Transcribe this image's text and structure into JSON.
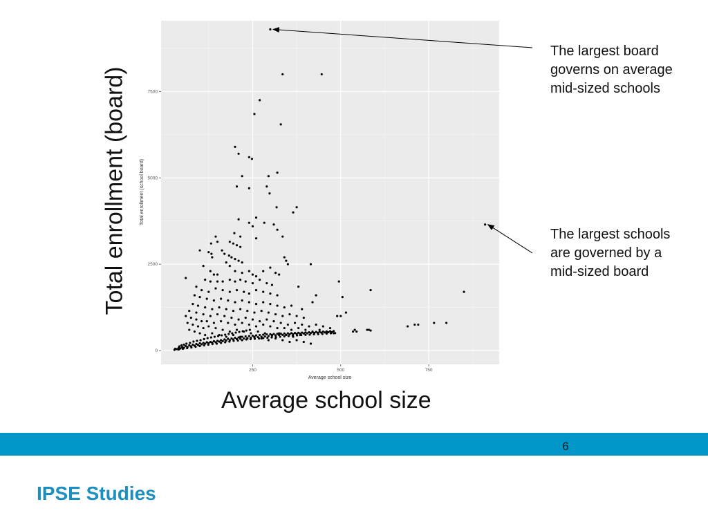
{
  "slide": {
    "xlabel": "Average school size",
    "ylabel": "Total enrollment (board)",
    "annotations": [
      "The largest board governs on average mid-sized schools",
      "The largest schools are governed by a mid-sized board"
    ],
    "page_number": "6",
    "brand": "IPSE Studies",
    "brand_color": "#1b8fc0",
    "band_color": "#0097c8"
  },
  "chart_data": {
    "type": "scatter",
    "title": "",
    "xlabel": "Average school size",
    "ylabel": "Total enrollment (school board)",
    "xlim": [
      -10,
      950
    ],
    "ylim": [
      -400,
      9550
    ],
    "x_ticks": [
      250,
      500,
      750
    ],
    "y_ticks": [
      0,
      2500,
      5000,
      7500
    ],
    "grid": true,
    "panel_color": "#ebebeb",
    "point_color": "#000000",
    "annotated_points": [
      [
        300,
        9300
      ],
      [
        910,
        3650
      ]
    ],
    "points": [
      [
        300,
        9300
      ],
      [
        335,
        8000
      ],
      [
        446,
        8000
      ],
      [
        270,
        7250
      ],
      [
        255,
        6850
      ],
      [
        330,
        6550
      ],
      [
        200,
        5900
      ],
      [
        210,
        5700
      ],
      [
        240,
        5600
      ],
      [
        248,
        5550
      ],
      [
        220,
        5050
      ],
      [
        295,
        5050
      ],
      [
        320,
        5150
      ],
      [
        205,
        4750
      ],
      [
        240,
        4700
      ],
      [
        290,
        4750
      ],
      [
        298,
        4550
      ],
      [
        318,
        4150
      ],
      [
        375,
        4150
      ],
      [
        365,
        4000
      ],
      [
        210,
        3800
      ],
      [
        260,
        3850
      ],
      [
        240,
        3700
      ],
      [
        250,
        3600
      ],
      [
        283,
        3700
      ],
      [
        310,
        3650
      ],
      [
        320,
        3500
      ],
      [
        198,
        3400
      ],
      [
        215,
        3300
      ],
      [
        260,
        3250
      ],
      [
        335,
        3300
      ],
      [
        145,
        3300
      ],
      [
        150,
        3150
      ],
      [
        132,
        3100
      ],
      [
        185,
        3150
      ],
      [
        195,
        3100
      ],
      [
        205,
        3050
      ],
      [
        215,
        3000
      ],
      [
        100,
        2900
      ],
      [
        125,
        2850
      ],
      [
        133,
        2800
      ],
      [
        163,
        2900
      ],
      [
        170,
        2800
      ],
      [
        183,
        2750
      ],
      [
        190,
        2700
      ],
      [
        200,
        2650
      ],
      [
        210,
        2600
      ],
      [
        220,
        2550
      ],
      [
        135,
        2700
      ],
      [
        175,
        2550
      ],
      [
        185,
        2450
      ],
      [
        340,
        2700
      ],
      [
        345,
        2600
      ],
      [
        350,
        2500
      ],
      [
        110,
        2450
      ],
      [
        415,
        2500
      ],
      [
        60,
        2100
      ],
      [
        130,
        2300
      ],
      [
        140,
        2200
      ],
      [
        150,
        2200
      ],
      [
        200,
        2300
      ],
      [
        220,
        2250
      ],
      [
        240,
        2300
      ],
      [
        250,
        2200
      ],
      [
        260,
        2150
      ],
      [
        280,
        2300
      ],
      [
        300,
        2400
      ],
      [
        315,
        2250
      ],
      [
        325,
        2200
      ],
      [
        115,
        2050
      ],
      [
        130,
        2000
      ],
      [
        150,
        2000
      ],
      [
        165,
        2000
      ],
      [
        185,
        2050
      ],
      [
        200,
        2000
      ],
      [
        215,
        2050
      ],
      [
        230,
        2000
      ],
      [
        250,
        1950
      ],
      [
        270,
        2050
      ],
      [
        290,
        1950
      ],
      [
        305,
        1900
      ],
      [
        380,
        1850
      ],
      [
        495,
        2000
      ],
      [
        90,
        1850
      ],
      [
        105,
        1750
      ],
      [
        125,
        1700
      ],
      [
        145,
        1800
      ],
      [
        165,
        1750
      ],
      [
        185,
        1700
      ],
      [
        205,
        1750
      ],
      [
        225,
        1700
      ],
      [
        240,
        1650
      ],
      [
        260,
        1750
      ],
      [
        280,
        1700
      ],
      [
        300,
        1650
      ],
      [
        320,
        1600
      ],
      [
        85,
        1600
      ],
      [
        100,
        1550
      ],
      [
        120,
        1500
      ],
      [
        140,
        1450
      ],
      [
        160,
        1500
      ],
      [
        180,
        1450
      ],
      [
        200,
        1400
      ],
      [
        220,
        1450
      ],
      [
        240,
        1400
      ],
      [
        260,
        1350
      ],
      [
        280,
        1400
      ],
      [
        300,
        1350
      ],
      [
        320,
        1300
      ],
      [
        340,
        1250
      ],
      [
        360,
        1300
      ],
      [
        390,
        1200
      ],
      [
        420,
        1400
      ],
      [
        430,
        1600
      ],
      [
        505,
        1550
      ],
      [
        585,
        1750
      ],
      [
        850,
        1700
      ],
      [
        80,
        1350
      ],
      [
        95,
        1300
      ],
      [
        115,
        1250
      ],
      [
        135,
        1200
      ],
      [
        155,
        1250
      ],
      [
        175,
        1200
      ],
      [
        195,
        1150
      ],
      [
        215,
        1200
      ],
      [
        235,
        1150
      ],
      [
        255,
        1100
      ],
      [
        275,
        1150
      ],
      [
        295,
        1100
      ],
      [
        315,
        1050
      ],
      [
        335,
        1000
      ],
      [
        355,
        1050
      ],
      [
        375,
        1000
      ],
      [
        395,
        950
      ],
      [
        70,
        1150
      ],
      [
        90,
        1100
      ],
      [
        110,
        1050
      ],
      [
        130,
        1000
      ],
      [
        150,
        1050
      ],
      [
        170,
        1000
      ],
      [
        190,
        950
      ],
      [
        210,
        900
      ],
      [
        230,
        950
      ],
      [
        250,
        900
      ],
      [
        270,
        850
      ],
      [
        290,
        900
      ],
      [
        310,
        850
      ],
      [
        330,
        800
      ],
      [
        350,
        750
      ],
      [
        370,
        800
      ],
      [
        390,
        750
      ],
      [
        410,
        700
      ],
      [
        430,
        750
      ],
      [
        450,
        700
      ],
      [
        470,
        650
      ],
      [
        515,
        1100
      ],
      [
        490,
        1000
      ],
      [
        500,
        1000
      ],
      [
        60,
        1000
      ],
      [
        75,
        950
      ],
      [
        90,
        900
      ],
      [
        105,
        850
      ],
      [
        120,
        850
      ],
      [
        140,
        800
      ],
      [
        160,
        850
      ],
      [
        180,
        800
      ],
      [
        200,
        750
      ],
      [
        220,
        800
      ],
      [
        240,
        750
      ],
      [
        260,
        700
      ],
      [
        280,
        750
      ],
      [
        300,
        700
      ],
      [
        320,
        650
      ],
      [
        340,
        650
      ],
      [
        360,
        600
      ],
      [
        380,
        650
      ],
      [
        400,
        600
      ],
      [
        420,
        550
      ],
      [
        440,
        600
      ],
      [
        460,
        550
      ],
      [
        480,
        500
      ],
      [
        65,
        800
      ],
      [
        80,
        750
      ],
      [
        95,
        700
      ],
      [
        110,
        650
      ],
      [
        125,
        700
      ],
      [
        145,
        650
      ],
      [
        165,
        600
      ],
      [
        185,
        550
      ],
      [
        205,
        600
      ],
      [
        225,
        550
      ],
      [
        245,
        500
      ],
      [
        265,
        550
      ],
      [
        285,
        500
      ],
      [
        305,
        450
      ],
      [
        325,
        500
      ],
      [
        345,
        450
      ],
      [
        365,
        400
      ],
      [
        385,
        450
      ],
      [
        70,
        600
      ],
      [
        85,
        550
      ],
      [
        100,
        500
      ],
      [
        115,
        450
      ],
      [
        135,
        500
      ],
      [
        155,
        450
      ],
      [
        175,
        400
      ],
      [
        195,
        450
      ],
      [
        215,
        400
      ],
      [
        235,
        350
      ],
      [
        255,
        400
      ],
      [
        275,
        350
      ],
      [
        295,
        300
      ],
      [
        315,
        350
      ],
      [
        335,
        300
      ],
      [
        355,
        250
      ],
      [
        375,
        300
      ],
      [
        395,
        250
      ],
      [
        415,
        200
      ],
      [
        535,
        550
      ],
      [
        540,
        600
      ],
      [
        545,
        550
      ],
      [
        575,
        600
      ],
      [
        580,
        600
      ],
      [
        585,
        580
      ],
      [
        690,
        700
      ],
      [
        710,
        750
      ],
      [
        720,
        750
      ],
      [
        765,
        800
      ],
      [
        800,
        800
      ],
      [
        910,
        3650
      ],
      [
        30,
        50
      ],
      [
        40,
        80
      ],
      [
        50,
        100
      ],
      [
        60,
        130
      ],
      [
        70,
        150
      ],
      [
        80,
        170
      ],
      [
        90,
        190
      ],
      [
        100,
        210
      ],
      [
        110,
        220
      ],
      [
        120,
        240
      ],
      [
        130,
        250
      ],
      [
        140,
        270
      ],
      [
        150,
        280
      ],
      [
        160,
        300
      ],
      [
        170,
        320
      ],
      [
        180,
        340
      ],
      [
        190,
        350
      ],
      [
        200,
        370
      ],
      [
        210,
        380
      ],
      [
        220,
        400
      ],
      [
        230,
        410
      ],
      [
        240,
        420
      ],
      [
        250,
        430
      ],
      [
        260,
        440
      ],
      [
        270,
        450
      ],
      [
        280,
        460
      ],
      [
        290,
        470
      ],
      [
        300,
        475
      ],
      [
        310,
        480
      ],
      [
        320,
        485
      ],
      [
        330,
        490
      ],
      [
        340,
        495
      ],
      [
        350,
        500
      ],
      [
        360,
        505
      ],
      [
        370,
        510
      ],
      [
        380,
        515
      ],
      [
        390,
        520
      ],
      [
        400,
        525
      ],
      [
        410,
        530
      ],
      [
        420,
        535
      ],
      [
        430,
        540
      ],
      [
        440,
        545
      ],
      [
        450,
        550
      ],
      [
        460,
        555
      ],
      [
        470,
        560
      ],
      [
        480,
        565
      ],
      [
        35,
        40
      ],
      [
        45,
        60
      ],
      [
        55,
        80
      ],
      [
        65,
        100
      ],
      [
        75,
        120
      ],
      [
        85,
        140
      ],
      [
        95,
        160
      ],
      [
        105,
        180
      ],
      [
        115,
        200
      ],
      [
        125,
        210
      ],
      [
        135,
        230
      ],
      [
        145,
        240
      ],
      [
        155,
        260
      ],
      [
        165,
        270
      ],
      [
        175,
        290
      ],
      [
        185,
        300
      ],
      [
        195,
        320
      ],
      [
        205,
        330
      ],
      [
        215,
        340
      ],
      [
        225,
        350
      ],
      [
        235,
        360
      ],
      [
        245,
        370
      ],
      [
        255,
        380
      ],
      [
        265,
        390
      ],
      [
        275,
        400
      ],
      [
        285,
        410
      ],
      [
        295,
        420
      ],
      [
        305,
        430
      ],
      [
        315,
        440
      ],
      [
        325,
        450
      ],
      [
        335,
        455
      ],
      [
        345,
        460
      ],
      [
        355,
        470
      ],
      [
        365,
        475
      ],
      [
        375,
        480
      ],
      [
        385,
        490
      ],
      [
        395,
        495
      ],
      [
        405,
        500
      ],
      [
        415,
        505
      ],
      [
        425,
        510
      ],
      [
        435,
        515
      ],
      [
        445,
        520
      ],
      [
        455,
        525
      ],
      [
        465,
        530
      ],
      [
        475,
        535
      ],
      [
        28,
        20
      ],
      [
        40,
        30
      ],
      [
        52,
        50
      ],
      [
        64,
        70
      ],
      [
        76,
        90
      ],
      [
        88,
        110
      ],
      [
        100,
        130
      ],
      [
        112,
        150
      ],
      [
        124,
        170
      ],
      [
        136,
        190
      ],
      [
        148,
        200
      ],
      [
        160,
        220
      ],
      [
        172,
        240
      ],
      [
        184,
        260
      ],
      [
        196,
        280
      ],
      [
        208,
        290
      ],
      [
        220,
        300
      ],
      [
        232,
        320
      ],
      [
        244,
        330
      ],
      [
        256,
        340
      ],
      [
        268,
        350
      ],
      [
        280,
        360
      ],
      [
        292,
        370
      ],
      [
        304,
        380
      ],
      [
        316,
        390
      ],
      [
        328,
        400
      ],
      [
        340,
        410
      ],
      [
        352,
        420
      ],
      [
        364,
        430
      ],
      [
        376,
        440
      ],
      [
        388,
        450
      ],
      [
        400,
        455
      ],
      [
        412,
        460
      ],
      [
        424,
        470
      ],
      [
        436,
        475
      ],
      [
        448,
        480
      ],
      [
        460,
        490
      ],
      [
        472,
        500
      ],
      [
        484,
        505
      ],
      [
        42,
        120
      ],
      [
        48,
        150
      ],
      [
        55,
        170
      ],
      [
        62,
        200
      ],
      [
        72,
        220
      ],
      [
        82,
        260
      ],
      [
        92,
        280
      ],
      [
        102,
        300
      ],
      [
        112,
        330
      ],
      [
        122,
        360
      ],
      [
        132,
        380
      ],
      [
        142,
        400
      ],
      [
        152,
        420
      ],
      [
        162,
        440
      ],
      [
        172,
        460
      ],
      [
        182,
        480
      ],
      [
        192,
        500
      ],
      [
        202,
        520
      ],
      [
        212,
        540
      ],
      [
        222,
        560
      ],
      [
        232,
        580
      ],
      [
        242,
        600
      ]
    ]
  }
}
